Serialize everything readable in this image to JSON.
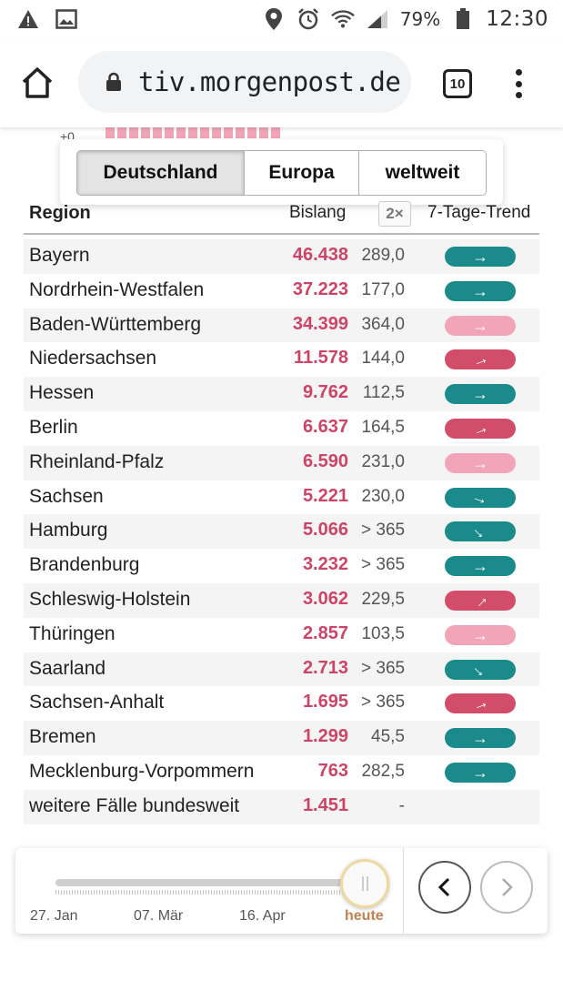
{
  "status_bar": {
    "battery": "79%",
    "time": "12:30"
  },
  "browser": {
    "url": "tiv.morgenpost.de",
    "tab_count": "10"
  },
  "chart_strip": {
    "tick_label": "+0"
  },
  "tabs": [
    {
      "label": "Deutschland",
      "active": true
    },
    {
      "label": "Europa",
      "active": false
    },
    {
      "label": "weltweit",
      "active": false
    }
  ],
  "table": {
    "headers": {
      "region": "Region",
      "bislang": "Bislang",
      "toggle": "2×",
      "trend": "7-Tage-Trend"
    },
    "rows": [
      {
        "region": "Bayern",
        "cases": "46.438",
        "doubling": "289,0",
        "trend_color": "teal",
        "trend_dir": "right"
      },
      {
        "region": "Nordrhein-Westfalen",
        "cases": "37.223",
        "doubling": "177,0",
        "trend_color": "teal",
        "trend_dir": "right"
      },
      {
        "region": "Baden-Württemberg",
        "cases": "34.399",
        "doubling": "364,0",
        "trend_color": "pink",
        "trend_dir": "right"
      },
      {
        "region": "Niedersachsen",
        "cases": "11.578",
        "doubling": "144,0",
        "trend_color": "red",
        "trend_dir": "up20"
      },
      {
        "region": "Hessen",
        "cases": "9.762",
        "doubling": "112,5",
        "trend_color": "teal",
        "trend_dir": "right"
      },
      {
        "region": "Berlin",
        "cases": "6.637",
        "doubling": "164,5",
        "trend_color": "red",
        "trend_dir": "up20"
      },
      {
        "region": "Rheinland-Pfalz",
        "cases": "6.590",
        "doubling": "231,0",
        "trend_color": "pink",
        "trend_dir": "right"
      },
      {
        "region": "Sachsen",
        "cases": "5.221",
        "doubling": "230,0",
        "trend_color": "teal",
        "trend_dir": "down20"
      },
      {
        "region": "Hamburg",
        "cases": "5.066",
        "doubling": "> 365",
        "trend_color": "teal",
        "trend_dir": "down45"
      },
      {
        "region": "Brandenburg",
        "cases": "3.232",
        "doubling": "> 365",
        "trend_color": "teal",
        "trend_dir": "right"
      },
      {
        "region": "Schleswig-Holstein",
        "cases": "3.062",
        "doubling": "229,5",
        "trend_color": "red",
        "trend_dir": "up45"
      },
      {
        "region": "Thüringen",
        "cases": "2.857",
        "doubling": "103,5",
        "trend_color": "pink",
        "trend_dir": "right"
      },
      {
        "region": "Saarland",
        "cases": "2.713",
        "doubling": "> 365",
        "trend_color": "teal",
        "trend_dir": "down45"
      },
      {
        "region": "Sachsen-Anhalt",
        "cases": "1.695",
        "doubling": "> 365",
        "trend_color": "red",
        "trend_dir": "up20"
      },
      {
        "region": "Bremen",
        "cases": "1.299",
        "doubling": "45,5",
        "trend_color": "teal",
        "trend_dir": "right"
      },
      {
        "region": "Mecklenburg-Vorpommern",
        "cases": "763",
        "doubling": "282,5",
        "trend_color": "teal",
        "trend_dir": "right"
      },
      {
        "region": "weitere Fälle bundesweit",
        "cases": "1.451",
        "doubling": "-",
        "trend_color": "",
        "trend_dir": ""
      }
    ]
  },
  "timeline": {
    "labels": [
      "27. Jan",
      "07. Mär",
      "16. Apr"
    ],
    "today_label": "heute",
    "position": 1.0
  },
  "colors": {
    "teal": "#1a8a8a",
    "pink": "#f2a5b8",
    "red": "#d24d6a",
    "cases": "#cc4466"
  }
}
